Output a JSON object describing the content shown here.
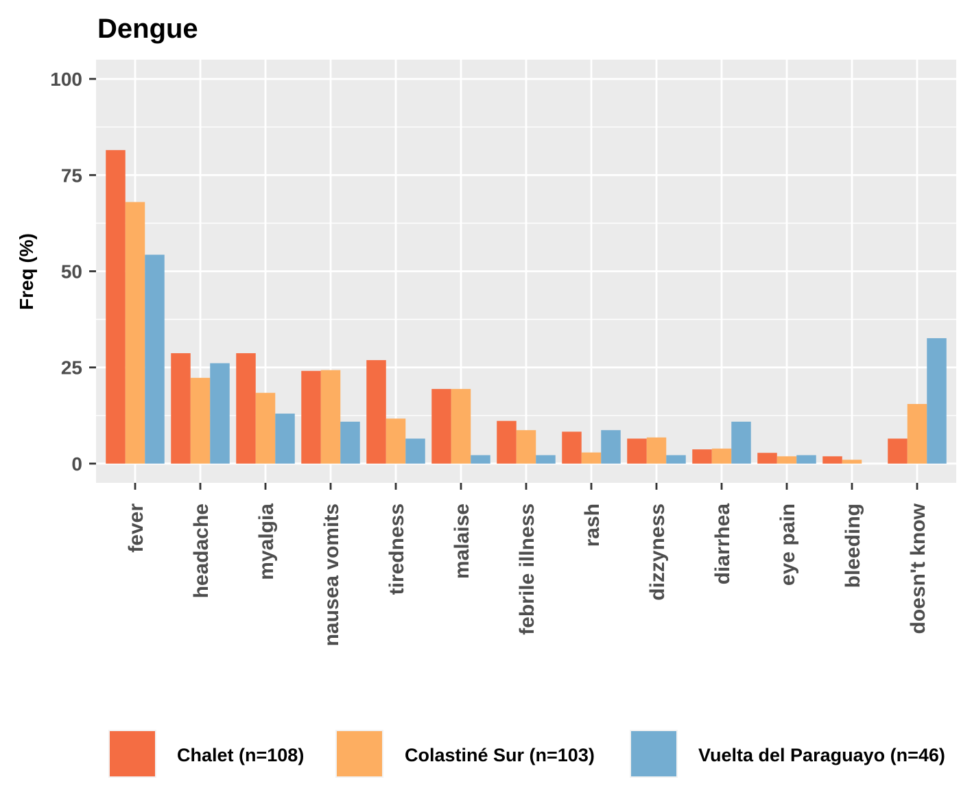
{
  "chart_data": {
    "type": "bar",
    "title": "Dengue",
    "xlabel": "",
    "ylabel": "Freq (%)",
    "ylim": [
      -5,
      105
    ],
    "yticks": [
      0,
      25,
      50,
      75,
      100
    ],
    "grid": true,
    "legend_position": "bottom",
    "categories": [
      "fever",
      "headache",
      "myalgia",
      "nausea vomits",
      "tiredness",
      "malaise",
      "febrile illness",
      "rash",
      "dizzyness",
      "diarrhea",
      "eye pain",
      "bleeding",
      "doesn't know"
    ],
    "series": [
      {
        "name": "Chalet (n=108)",
        "color": "#f46d43",
        "values": [
          81.5,
          28.7,
          28.7,
          24.1,
          26.9,
          19.4,
          11.1,
          8.3,
          6.5,
          3.7,
          2.8,
          1.9,
          6.5
        ]
      },
      {
        "name": "Colastiné Sur (n=103)",
        "color": "#fdae61",
        "values": [
          68.0,
          22.3,
          18.4,
          24.3,
          11.7,
          19.4,
          8.7,
          2.9,
          6.8,
          3.9,
          1.9,
          1.0,
          15.5
        ]
      },
      {
        "name": "Vuelta del Paraguayo (n=46)",
        "color": "#74add1",
        "values": [
          54.3,
          26.1,
          13.0,
          10.9,
          6.5,
          2.2,
          2.2,
          8.7,
          2.2,
          10.9,
          2.2,
          0,
          32.6
        ]
      }
    ]
  }
}
